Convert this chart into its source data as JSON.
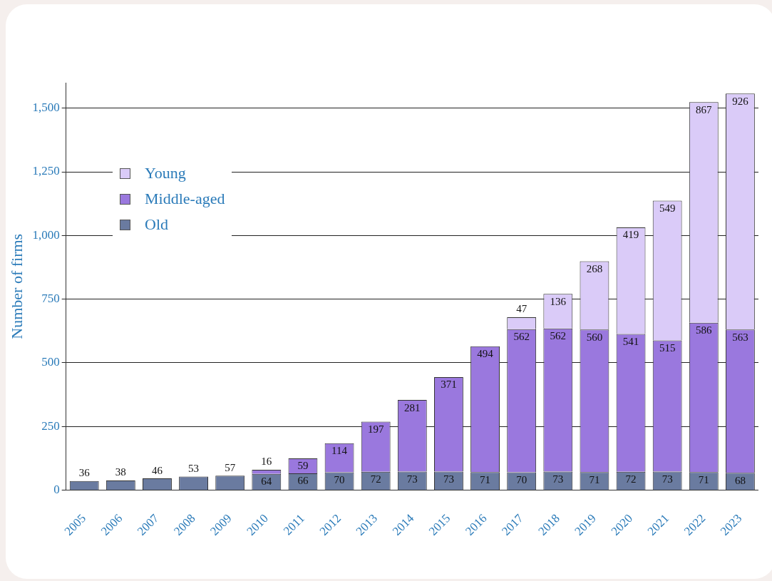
{
  "chart_data": {
    "type": "bar",
    "stacked": true,
    "ylabel": "Number of firms",
    "categories": [
      "2005",
      "2006",
      "2007",
      "2008",
      "2009",
      "2010",
      "2011",
      "2012",
      "2013",
      "2014",
      "2015",
      "2016",
      "2017",
      "2018",
      "2019",
      "2020",
      "2021",
      "2022",
      "2023"
    ],
    "series": [
      {
        "name": "Old",
        "color": "#6a7ba0",
        "values": [
          36,
          38,
          46,
          53,
          57,
          64,
          66,
          70,
          72,
          73,
          73,
          71,
          70,
          73,
          71,
          72,
          73,
          71,
          68
        ]
      },
      {
        "name": "Middle-aged",
        "color": "#9a78de",
        "values": [
          null,
          null,
          null,
          null,
          null,
          16,
          59,
          114,
          197,
          281,
          371,
          494,
          562,
          562,
          560,
          541,
          515,
          586,
          563
        ]
      },
      {
        "name": "Young",
        "color": "#dacbf8",
        "values": [
          null,
          null,
          null,
          null,
          null,
          null,
          null,
          null,
          null,
          null,
          null,
          null,
          47,
          136,
          268,
          419,
          549,
          867,
          926
        ]
      }
    ],
    "ylim": [
      0,
      1600
    ],
    "yticks": [
      0,
      {
        "value": 250,
        "label": "250"
      },
      {
        "value": 500,
        "label": "500"
      },
      {
        "value": 750,
        "label": "750"
      },
      {
        "value": 1000,
        "label": "1,000"
      },
      {
        "value": 1250,
        "label": "1,250"
      },
      {
        "value": 1500,
        "label": "1,500"
      }
    ],
    "grid": "y",
    "legend": "top left",
    "data_labels": true
  }
}
